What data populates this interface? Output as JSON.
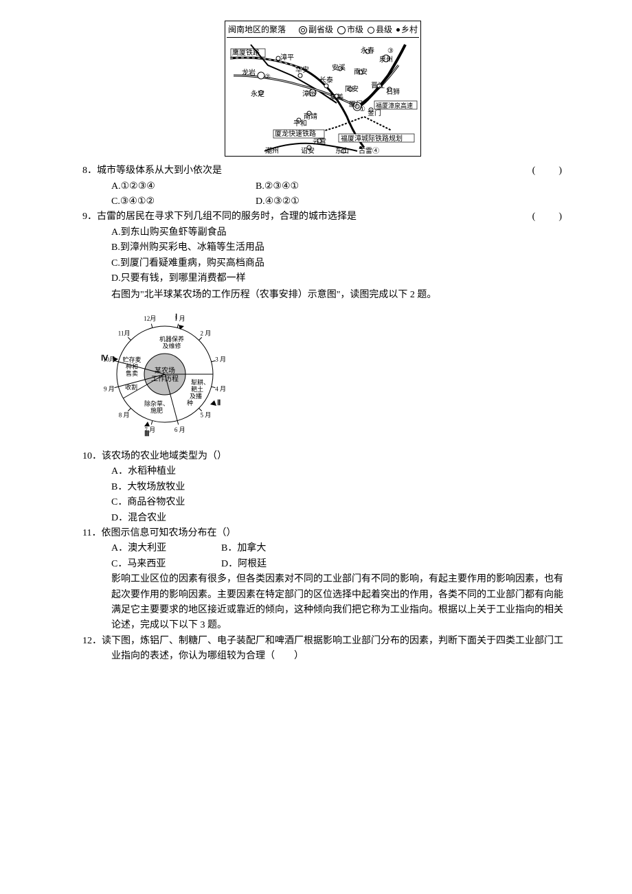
{
  "map": {
    "title": "闽南地区的聚落",
    "legend": {
      "sub_province": "副省级",
      "city": "市级",
      "county": "县级",
      "village": "乡村"
    },
    "labels": {
      "yingxia": "鹰厦铁路",
      "zhangping": "漳平",
      "longyan": "龙岩",
      "yongding": "永定",
      "huaan": "华安",
      "changtai": "长泰",
      "zhangzhou": "漳州",
      "jimei": "集美",
      "nanjing": "南靖",
      "pinghe": "平和",
      "xialong": "厦龙快速铁路",
      "yunxiao": "云霄",
      "zhaoan": "诏安",
      "chaozhou": "潮州",
      "dongshan": "东山",
      "gulei": "古雷④",
      "fuxiazhang": "福厦漳城际铁路规划",
      "xiamen": "厦门",
      "jinmen": "金门",
      "fuxiazhangquan_hs": "福厦漳泉高速",
      "tongan": "同安",
      "jinjiang": "晋江",
      "shishi": "石狮",
      "nanan": "南安",
      "anxi": "安溪",
      "quanzhou": "泉州",
      "yongchun": "永春",
      "mark1": "①",
      "mark2": "②",
      "mark3": "③"
    }
  },
  "q8": {
    "stem": "8．城市等级体系从大到小依次是",
    "paren": "(　　)",
    "opts": {
      "a": "A.①②③④",
      "b": "B.②③④①",
      "c": "C.③④①②",
      "d": "D.④③②①"
    }
  },
  "q9": {
    "stem": "9．古雷的居民在寻求下列几组不同的服务时，合理的城市选择是",
    "paren": "(　　)",
    "opts": {
      "a": "A.到东山购买鱼虾等副食品",
      "b": "B.到漳州购买彩电、冰箱等生活用品",
      "c": "C.到厦门看疑难重病，购买高档商品",
      "d": "D.只要有钱，到哪里消费都一样"
    },
    "intro": "右图为\"北半球某农场的工作历程（农事安排）示意图\"，读图完成以下 2 题。"
  },
  "circle_fig": {
    "center1": "某农场",
    "center2": "工作历程",
    "months": [
      "1 月",
      "2 月",
      "3 月",
      "4 月",
      "5 月",
      "6 月",
      "7 月",
      "8 月",
      "9 月",
      "10月",
      "11月",
      "12月"
    ],
    "seg1a": "机器保养",
    "seg1b": "及维修",
    "seg2a": "犁耕、",
    "seg2b": "耙土",
    "seg2c": "及播",
    "seg2d": "种",
    "seg3a": "除杂草、",
    "seg3b": "施肥",
    "seg4": "收割",
    "seg5a": "贮存麦",
    "seg5b": "种和",
    "seg5c": "售卖",
    "roman": [
      "Ⅰ",
      "Ⅱ",
      "Ⅲ",
      "Ⅳ"
    ],
    "colors": {
      "inner_fill": "#bfbfbf",
      "outer_fill": "#ffffff",
      "stroke": "#000000"
    },
    "fontsize": 9
  },
  "q10": {
    "stem": "10．该农场的农业地域类型为（）",
    "opts": {
      "a": "A．水稻种植业",
      "b": "B．大牧场放牧业",
      "c": "C．商品谷物农业",
      "d": "D．混合农业"
    }
  },
  "q11": {
    "stem": "11．依图示信息可知农场分布在（）",
    "opts": {
      "a": "A．澳大利亚",
      "b": "B．加拿大",
      "c": "C．马来西亚",
      "d": "D．阿根廷"
    }
  },
  "industry_intro": "影响工业区位的因素有很多，但各类因素对不同的工业部门有不同的影响，有起主要作用的影响因素，也有起次要作用的影响因素。主要因素在特定部门的区位选择中起着突出的作用，各类不同的工业部门都有向能满足它主要要求的地区接近或靠近的倾向，这种倾向我们把它称为工业指向。根据以上关于工业指向的相关论述，完成以下以下 3 题。",
  "q12": {
    "stem": "12．读下图，炼铝厂、制糖厂、电子装配厂和啤酒厂根据影响工业部门分布的因素，判断下面关于四类工业部门工业指向的表述，你认为哪组较为合理（　　）"
  }
}
